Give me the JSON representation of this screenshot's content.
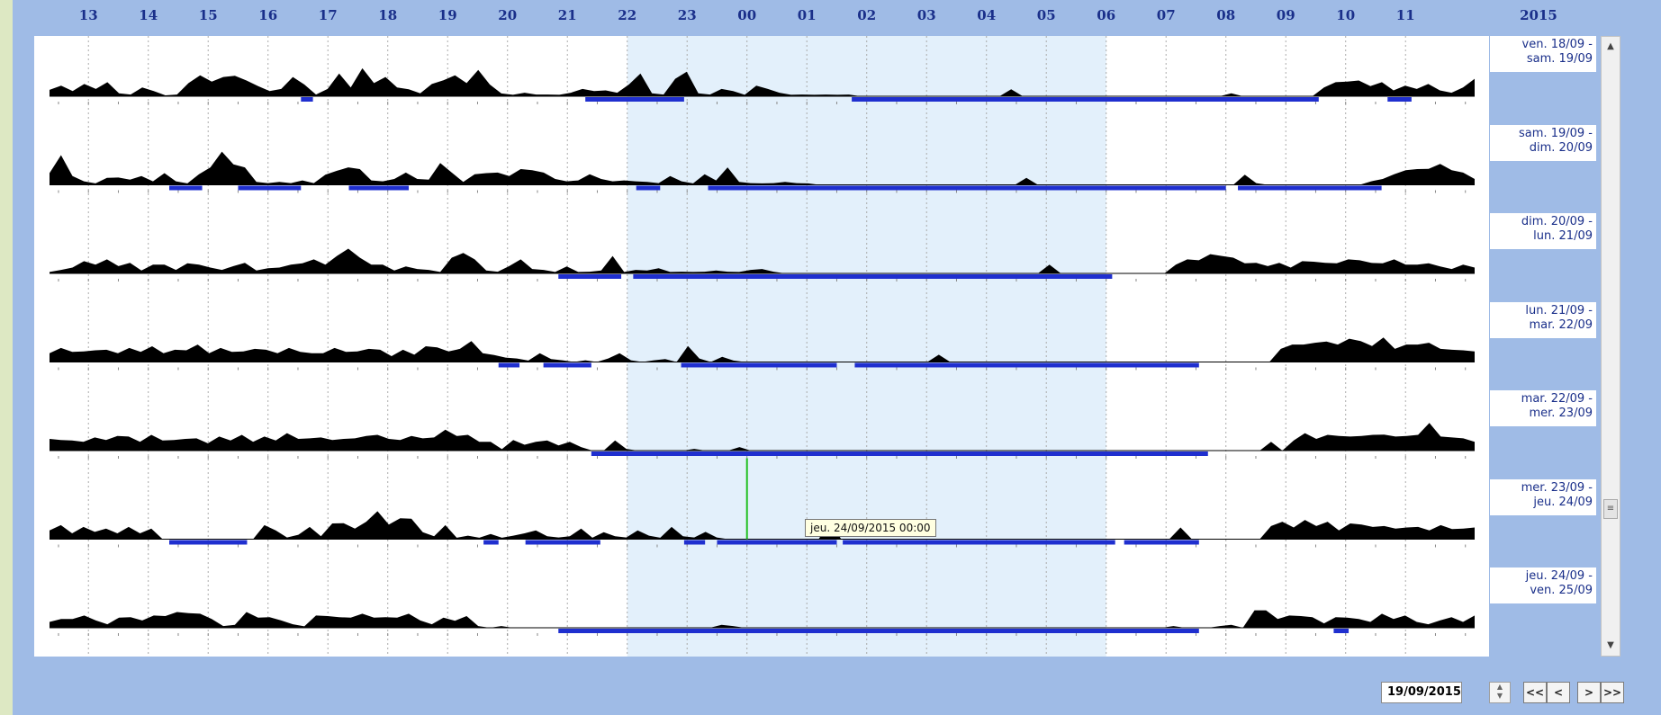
{
  "hour_labels": [
    "13",
    "14",
    "15",
    "16",
    "17",
    "18",
    "19",
    "20",
    "21",
    "22",
    "23",
    "00",
    "01",
    "02",
    "03",
    "04",
    "05",
    "06",
    "07",
    "08",
    "09",
    "10",
    "11"
  ],
  "year": "2015",
  "rows": [
    {
      "label": "ven. 18/09 -\nsam. 19/09",
      "activity": [
        0.22,
        0.3,
        0.18,
        0.35,
        0.25,
        0.4,
        0.1,
        0.05,
        0.3,
        0.15,
        0.03,
        0.05,
        0.45,
        0.6,
        0.5,
        0.55,
        0.7,
        0.45,
        0.35,
        0.15,
        0.25,
        0.55,
        0.4,
        0.05,
        0.25,
        0.65,
        0.3,
        0.8,
        0.45,
        0.55,
        0.3,
        0.2,
        0.1,
        0.35,
        0.55,
        0.6,
        0.45,
        0.75,
        0.4,
        0.08,
        0.05,
        0.1,
        0.06,
        0.05,
        0.05,
        0.1,
        0.25,
        0.15,
        0.2,
        0.1,
        0.4,
        0.65,
        0.1,
        0.05,
        0.6,
        0.7,
        0.1,
        0.05,
        0.25,
        0.15,
        0.05,
        0.3,
        0.25,
        0.1,
        0.05,
        0.05,
        0.05,
        0.05,
        0.05,
        0.05,
        0.0,
        0.0,
        0.0,
        0.0,
        0.0,
        0.0,
        0.0,
        0.0,
        0.0,
        0.0,
        0.0,
        0.0,
        0.0,
        0.2,
        0.0,
        0.0,
        0.0,
        0.0,
        0.0,
        0.0,
        0.0,
        0.0,
        0.0,
        0.0,
        0.0,
        0.0,
        0.0,
        0.0,
        0.0,
        0.0,
        0.0,
        0.0,
        0.1,
        0.0,
        0.0,
        0.0,
        0.0,
        0.0,
        0.0,
        0.0,
        0.3,
        0.4,
        0.5,
        0.45,
        0.35,
        0.4,
        0.2,
        0.3,
        0.25,
        0.35,
        0.2,
        0.1,
        0.3,
        0.5
      ],
      "sleep": [
        [
          16.55,
          16.75
        ],
        [
          21.3,
          22.95
        ],
        [
          1.75,
          9.55
        ],
        [
          10.7,
          11.1
        ]
      ]
    },
    {
      "label": "sam. 19/09 -\ndim. 20/09",
      "activity": [
        0.4,
        0.85,
        0.3,
        0.1,
        0.05,
        0.2,
        0.25,
        0.15,
        0.3,
        0.1,
        0.4,
        0.1,
        0.05,
        0.3,
        0.6,
        0.95,
        0.7,
        0.5,
        0.1,
        0.05,
        0.1,
        0.05,
        0.15,
        0.05,
        0.35,
        0.4,
        0.6,
        0.45,
        0.15,
        0.1,
        0.2,
        0.35,
        0.2,
        0.15,
        0.75,
        0.35,
        0.1,
        0.3,
        0.4,
        0.35,
        0.3,
        0.45,
        0.5,
        0.35,
        0.2,
        0.1,
        0.15,
        0.3,
        0.2,
        0.1,
        0.15,
        0.1,
        0.1,
        0.05,
        0.3,
        0.1,
        0.05,
        0.3,
        0.15,
        0.5,
        0.1,
        0.05,
        0.05,
        0.05,
        0.1,
        0.05,
        0.05,
        0.0,
        0.0,
        0.0,
        0.0,
        0.0,
        0.0,
        0.0,
        0.0,
        0.0,
        0.0,
        0.0,
        0.0,
        0.0,
        0.0,
        0.0,
        0.0,
        0.0,
        0.0,
        0.2,
        0.0,
        0.0,
        0.0,
        0.0,
        0.0,
        0.0,
        0.0,
        0.0,
        0.0,
        0.0,
        0.0,
        0.0,
        0.0,
        0.0,
        0.0,
        0.0,
        0.0,
        0.0,
        0.35,
        0.05,
        0.0,
        0.0,
        0.0,
        0.0,
        0.0,
        0.0,
        0.0,
        0.0,
        0.0,
        0.1,
        0.2,
        0.3,
        0.5,
        0.45,
        0.55,
        0.6,
        0.5,
        0.35,
        0.2
      ],
      "sleep": [
        [
          14.35,
          14.9
        ],
        [
          15.5,
          16.55
        ],
        [
          17.35,
          18.35
        ],
        [
          22.15,
          22.55
        ],
        [
          23.35,
          8.0
        ],
        [
          8.2,
          10.6
        ]
      ]
    },
    {
      "label": "dim. 20/09 -\nlun. 21/09",
      "activity": [
        0.05,
        0.1,
        0.2,
        0.35,
        0.3,
        0.4,
        0.25,
        0.3,
        0.1,
        0.25,
        0.3,
        0.1,
        0.35,
        0.25,
        0.2,
        0.1,
        0.25,
        0.3,
        0.1,
        0.15,
        0.2,
        0.25,
        0.35,
        0.4,
        0.3,
        0.5,
        0.85,
        0.45,
        0.3,
        0.25,
        0.1,
        0.2,
        0.15,
        0.1,
        0.05,
        0.45,
        0.7,
        0.4,
        0.1,
        0.05,
        0.25,
        0.4,
        0.15,
        0.1,
        0.05,
        0.2,
        0.05,
        0.05,
        0.1,
        0.5,
        0.05,
        0.1,
        0.1,
        0.15,
        0.05,
        0.05,
        0.05,
        0.05,
        0.1,
        0.05,
        0.05,
        0.1,
        0.15,
        0.05,
        0.0,
        0.0,
        0.0,
        0.0,
        0.0,
        0.0,
        0.0,
        0.0,
        0.0,
        0.0,
        0.0,
        0.0,
        0.0,
        0.0,
        0.0,
        0.0,
        0.0,
        0.0,
        0.0,
        0.0,
        0.0,
        0.0,
        0.0,
        0.25,
        0.0,
        0.0,
        0.0,
        0.0,
        0.0,
        0.0,
        0.0,
        0.0,
        0.0,
        0.0,
        0.3,
        0.4,
        0.45,
        0.55,
        0.6,
        0.45,
        0.35,
        0.3,
        0.25,
        0.3,
        0.2,
        0.35,
        0.4,
        0.3,
        0.35,
        0.4,
        0.45,
        0.3,
        0.35,
        0.4,
        0.3,
        0.25,
        0.35,
        0.2,
        0.15,
        0.25,
        0.2
      ],
      "sleep": [
        [
          20.85,
          21.9
        ],
        [
          22.1,
          6.1
        ]
      ]
    },
    {
      "label": "lun. 21/09 -\nmar. 22/09",
      "activity": [
        0.3,
        0.4,
        0.35,
        0.3,
        0.4,
        0.35,
        0.3,
        0.4,
        0.35,
        0.45,
        0.3,
        0.35,
        0.4,
        0.5,
        0.3,
        0.4,
        0.35,
        0.3,
        0.45,
        0.35,
        0.3,
        0.4,
        0.35,
        0.25,
        0.3,
        0.4,
        0.35,
        0.3,
        0.45,
        0.35,
        0.2,
        0.35,
        0.25,
        0.45,
        0.5,
        0.3,
        0.45,
        0.6,
        0.3,
        0.2,
        0.15,
        0.1,
        0.05,
        0.25,
        0.1,
        0.05,
        0.0,
        0.05,
        0.0,
        0.1,
        0.3,
        0.05,
        0.0,
        0.05,
        0.1,
        0.0,
        0.55,
        0.1,
        0.0,
        0.15,
        0.05,
        0.0,
        0.0,
        0.0,
        0.0,
        0.0,
        0.0,
        0.0,
        0.0,
        0.0,
        0.0,
        0.0,
        0.0,
        0.0,
        0.0,
        0.0,
        0.0,
        0.0,
        0.25,
        0.0,
        0.0,
        0.0,
        0.0,
        0.0,
        0.0,
        0.0,
        0.0,
        0.0,
        0.0,
        0.0,
        0.0,
        0.0,
        0.0,
        0.0,
        0.0,
        0.0,
        0.0,
        0.0,
        0.0,
        0.0,
        0.0,
        0.0,
        0.0,
        0.0,
        0.0,
        0.0,
        0.0,
        0.0,
        0.45,
        0.5,
        0.6,
        0.55,
        0.7,
        0.5,
        0.8,
        0.6,
        0.55,
        0.7,
        0.45,
        0.5,
        0.6,
        0.55,
        0.45,
        0.35,
        0.4,
        0.3
      ],
      "sleep": [
        [
          19.85,
          20.2
        ],
        [
          20.6,
          21.4
        ],
        [
          22.9,
          1.5
        ],
        [
          1.8,
          7.55
        ]
      ]
    },
    {
      "label": "mar. 22/09 -\nmer. 23/09",
      "activity": [
        0.4,
        0.3,
        0.35,
        0.25,
        0.45,
        0.3,
        0.5,
        0.4,
        0.3,
        0.45,
        0.35,
        0.3,
        0.4,
        0.35,
        0.25,
        0.4,
        0.35,
        0.45,
        0.3,
        0.4,
        0.35,
        0.5,
        0.4,
        0.35,
        0.45,
        0.3,
        0.4,
        0.35,
        0.5,
        0.45,
        0.4,
        0.3,
        0.5,
        0.35,
        0.45,
        0.6,
        0.5,
        0.45,
        0.3,
        0.25,
        0.05,
        0.3,
        0.2,
        0.25,
        0.35,
        0.15,
        0.3,
        0.1,
        0.0,
        0.0,
        0.35,
        0.05,
        0.0,
        0.0,
        0.0,
        0.0,
        0.0,
        0.05,
        0.0,
        0.0,
        0.0,
        0.1,
        0.0,
        0.0,
        0.0,
        0.0,
        0.0,
        0.0,
        0.0,
        0.0,
        0.0,
        0.0,
        0.0,
        0.0,
        0.0,
        0.0,
        0.0,
        0.0,
        0.0,
        0.0,
        0.0,
        0.0,
        0.0,
        0.0,
        0.0,
        0.0,
        0.0,
        0.0,
        0.0,
        0.0,
        0.0,
        0.0,
        0.0,
        0.0,
        0.0,
        0.0,
        0.0,
        0.0,
        0.0,
        0.0,
        0.0,
        0.0,
        0.0,
        0.0,
        0.0,
        0.0,
        0.0,
        0.0,
        0.3,
        0.0,
        0.35,
        0.5,
        0.4,
        0.45,
        0.5,
        0.4,
        0.5,
        0.45,
        0.55,
        0.4,
        0.5,
        0.45,
        0.95,
        0.4,
        0.45,
        0.35,
        0.3
      ],
      "sleep": [
        [
          21.4,
          7.7
        ]
      ]
    },
    {
      "label": "mer. 23/09 -\njeu. 24/09",
      "activity": [
        0.3,
        0.4,
        0.2,
        0.35,
        0.25,
        0.3,
        0.2,
        0.35,
        0.2,
        0.3,
        0.0,
        0.0,
        0.0,
        0.0,
        0.0,
        0.0,
        0.0,
        0.0,
        0.0,
        0.4,
        0.3,
        0.05,
        0.15,
        0.35,
        0.1,
        0.45,
        0.55,
        0.3,
        0.6,
        0.8,
        0.5,
        0.6,
        0.7,
        0.2,
        0.1,
        0.4,
        0.05,
        0.1,
        0.05,
        0.15,
        0.05,
        0.1,
        0.2,
        0.25,
        0.1,
        0.05,
        0.1,
        0.3,
        0.05,
        0.2,
        0.1,
        0.05,
        0.3,
        0.1,
        0.05,
        0.35,
        0.1,
        0.05,
        0.25,
        0.05,
        0.0,
        0.0,
        0.0,
        0.0,
        0.0,
        0.0,
        0.0,
        0.0,
        0.0,
        0.5,
        0.0,
        0.0,
        0.0,
        0.0,
        0.0,
        0.0,
        0.0,
        0.0,
        0.0,
        0.0,
        0.0,
        0.0,
        0.0,
        0.0,
        0.0,
        0.0,
        0.0,
        0.0,
        0.0,
        0.0,
        0.0,
        0.0,
        0.0,
        0.0,
        0.0,
        0.0,
        0.0,
        0.0,
        0.0,
        0.0,
        0.4,
        0.0,
        0.0,
        0.0,
        0.0,
        0.0,
        0.0,
        0.0,
        0.45,
        0.5,
        0.4,
        0.55,
        0.45,
        0.5,
        0.3,
        0.45,
        0.5,
        0.35,
        0.45,
        0.3,
        0.4,
        0.35,
        0.3,
        0.4,
        0.35,
        0.3,
        0.4
      ],
      "sleep": [
        [
          14.35,
          15.65
        ],
        [
          19.6,
          19.85
        ],
        [
          20.3,
          21.55
        ],
        [
          22.95,
          23.3
        ],
        [
          23.5,
          1.5
        ],
        [
          1.6,
          6.15
        ],
        [
          6.3,
          7.55
        ]
      ]
    },
    {
      "label": "jeu. 24/09 -\nven. 25/09",
      "activity": [
        0.2,
        0.25,
        0.3,
        0.35,
        0.25,
        0.1,
        0.35,
        0.3,
        0.25,
        0.35,
        0.4,
        0.45,
        0.5,
        0.4,
        0.3,
        0.05,
        0.1,
        0.45,
        0.35,
        0.3,
        0.25,
        0.1,
        0.05,
        0.35,
        0.4,
        0.3,
        0.35,
        0.4,
        0.35,
        0.3,
        0.35,
        0.4,
        0.25,
        0.1,
        0.35,
        0.2,
        0.4,
        0.05,
        0.0,
        0.05,
        0.0,
        0.0,
        0.0,
        0.0,
        0.0,
        0.0,
        0.0,
        0.0,
        0.0,
        0.0,
        0.0,
        0.0,
        0.0,
        0.0,
        0.0,
        0.0,
        0.0,
        0.0,
        0.1,
        0.05,
        0.0,
        0.0,
        0.0,
        0.0,
        0.0,
        0.0,
        0.0,
        0.0,
        0.0,
        0.0,
        0.0,
        0.0,
        0.0,
        0.0,
        0.0,
        0.0,
        0.0,
        0.0,
        0.0,
        0.0,
        0.0,
        0.0,
        0.0,
        0.0,
        0.0,
        0.0,
        0.0,
        0.0,
        0.0,
        0.0,
        0.0,
        0.0,
        0.0,
        0.0,
        0.0,
        0.0,
        0.0,
        0.05,
        0.0,
        0.0,
        0.0,
        0.05,
        0.1,
        0.0,
        0.6,
        0.5,
        0.3,
        0.35,
        0.4,
        0.3,
        0.15,
        0.3,
        0.35,
        0.25,
        0.2,
        0.4,
        0.3,
        0.35,
        0.2,
        0.1,
        0.25,
        0.3,
        0.2,
        0.35
      ],
      "sleep": [
        [
          20.85,
          7.55
        ],
        [
          9.8,
          10.05
        ]
      ]
    }
  ],
  "night_shading": {
    "start": "22:00",
    "end": "06:00",
    "color": "#e3f0fb"
  },
  "colors": {
    "activity": "#000000",
    "sleep_bar": "#1f2fcf",
    "cursor": "#22c022",
    "grid": "#aaaaaa"
  },
  "cursor": {
    "time": "00:00",
    "row": 5
  },
  "tooltip": "jeu. 24/09/2015 00:00",
  "date_field": "19/09/2015",
  "nav": {
    "first": "<<",
    "prev": "<",
    "next": ">",
    "last": ">>"
  }
}
